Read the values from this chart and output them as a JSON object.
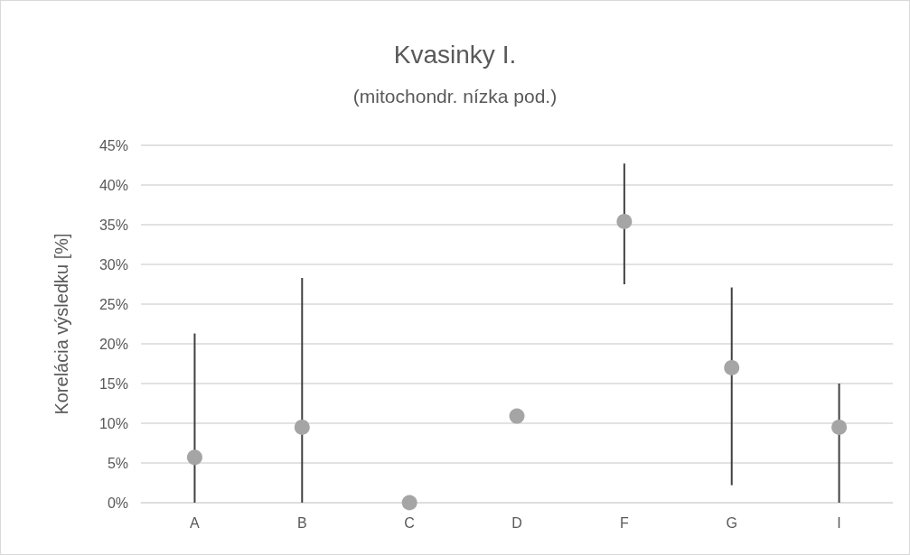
{
  "chart_data": {
    "type": "scatter",
    "title": "Kvasinky I.",
    "subtitle": "(mitochondr. nízka pod.)",
    "ylabel": "Korelácia výsledku [%]",
    "categories": [
      "A",
      "B",
      "C",
      "D",
      "F",
      "G",
      "I"
    ],
    "series": [
      {
        "color": "#a5a5a5",
        "values": [
          5.7,
          9.5,
          0,
          10.9,
          35.4,
          17.0,
          9.5
        ],
        "errors": [
          [
            0,
            21.3
          ],
          [
            0,
            28.3
          ],
          null,
          null,
          [
            27.5,
            42.7
          ],
          [
            2.2,
            27.1
          ],
          [
            0,
            15.0
          ]
        ]
      }
    ],
    "ylim": [
      0,
      45
    ],
    "yticks": [
      {
        "value": 0,
        "label": "0%"
      },
      {
        "value": 5,
        "label": "5%"
      },
      {
        "value": 10,
        "label": "10%"
      },
      {
        "value": 15,
        "label": "15%"
      },
      {
        "value": 20,
        "label": "20%"
      },
      {
        "value": 25,
        "label": "25%"
      },
      {
        "value": 30,
        "label": "30%"
      },
      {
        "value": 35,
        "label": "35%"
      },
      {
        "value": 40,
        "label": "40%"
      },
      {
        "value": 45,
        "label": "45%"
      }
    ],
    "grid": "y",
    "marker": "circle"
  }
}
